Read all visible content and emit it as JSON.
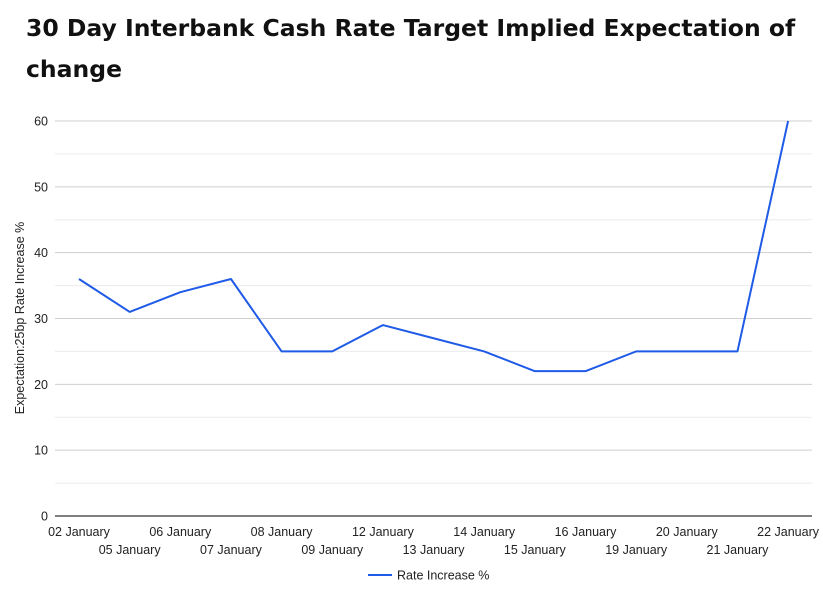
{
  "chart_data": {
    "type": "line",
    "title": "30 Day Interbank Cash Rate Target Implied Expectation of change",
    "ylabel": "Expectation:25bp Rate Increase %",
    "xlabel": "",
    "ylim": [
      0,
      60
    ],
    "y_ticks": [
      0,
      10,
      20,
      30,
      40,
      50,
      60
    ],
    "grid": true,
    "legend_position": "bottom",
    "categories": [
      "02 January",
      "05 January",
      "06 January",
      "07 January",
      "08 January",
      "09 January",
      "12 January",
      "13 January",
      "14 January",
      "15 January",
      "16 January",
      "19 January",
      "20 January",
      "21 January",
      "22 January"
    ],
    "series": [
      {
        "name": "Rate Increase %",
        "color": "#1f5be6",
        "values": [
          36,
          31,
          34,
          36,
          25,
          25,
          29,
          27,
          25,
          22,
          22,
          25,
          25,
          25,
          60
        ]
      }
    ]
  }
}
